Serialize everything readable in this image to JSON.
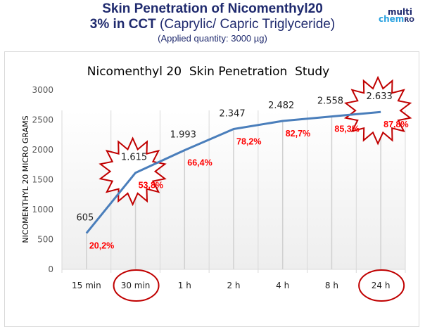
{
  "header": {
    "title_line1": "Skin Penetration of Nicomenthyl20",
    "title_line2_bold": "3% in CCT",
    "title_line2_rest": " (Caprylic/ Capric Triglyceride)",
    "title_line3": "(Applied quantity: 3000 µg)",
    "logo_top": "multi",
    "logo_bottom": "chem",
    "logo_suffix": "RO"
  },
  "colors": {
    "title": "#1f2a6e",
    "line": "#4a7ebb",
    "percent_label": "#ff0000",
    "highlight": "#c00000",
    "logo_accent": "#2aa2e0"
  },
  "chart_data": {
    "type": "line",
    "title": "Nicomenthyl 20  Skin Penetration  Study",
    "xlabel": "",
    "ylabel": "NICOMENTHYL 20 MICRO GRAMS",
    "ylim": [
      0,
      3000
    ],
    "yticks": [
      0,
      500,
      1000,
      1500,
      2000,
      2500,
      3000
    ],
    "grid": "vertical",
    "legend": "none",
    "categories": [
      "15 min",
      "30 min",
      "1 h",
      "2 h",
      "4 h",
      "8 h",
      "24 h"
    ],
    "series": [
      {
        "name": "Nicomenthyl 20",
        "values": [
          605,
          1615,
          1993,
          2347,
          2482,
          2558,
          2633
        ],
        "value_labels": [
          "605",
          "1.615",
          "1.993",
          "2.347",
          "2.482",
          "2.558",
          "2.633"
        ],
        "percent_labels": [
          "20,2%",
          "53,8%",
          "66,4%",
          "78,2%",
          "82,7%",
          "85,3%",
          "87,8%"
        ]
      }
    ],
    "annotations": {
      "starburst_points": [
        "30 min",
        "24 h"
      ],
      "circled_categories": [
        "30 min",
        "24 h"
      ]
    }
  }
}
